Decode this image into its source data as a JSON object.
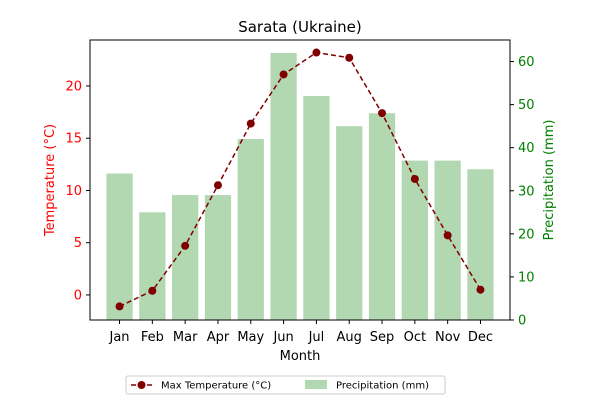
{
  "chart_data": {
    "type": "bar+line",
    "title": "Sarata (Ukraine)",
    "xlabel": "Month",
    "ylabel_left": "Temperature (°C)",
    "ylabel_right": "Precipitation (mm)",
    "categories": [
      "Jan",
      "Feb",
      "Mar",
      "Apr",
      "May",
      "Jun",
      "Jul",
      "Aug",
      "Sep",
      "Oct",
      "Nov",
      "Dec"
    ],
    "series": [
      {
        "name": "Max Temperature (°C)",
        "type": "line",
        "axis": "left",
        "color": "#800000",
        "values": [
          -1.1,
          0.4,
          4.7,
          10.5,
          16.4,
          21.1,
          23.2,
          22.7,
          17.4,
          11.1,
          5.7,
          0.5
        ]
      },
      {
        "name": "Precipitation (mm)",
        "type": "bar",
        "axis": "right",
        "color": "#b2d8b2",
        "values": [
          34,
          25,
          29,
          29,
          42,
          62,
          52,
          45,
          48,
          37,
          37,
          35
        ]
      }
    ],
    "ylim_left": [
      -2.4,
      24.4
    ],
    "ylim_right": [
      0,
      65
    ],
    "yticks_left": [
      0,
      5,
      10,
      15,
      20
    ],
    "yticks_right": [
      0,
      10,
      20,
      30,
      40,
      50,
      60
    ],
    "left_axis_color": "#ff0000",
    "right_axis_color": "#008000",
    "legend": [
      "Max Temperature (°C)",
      "Precipitation (mm)"
    ],
    "legend_position": "bottom-center"
  }
}
